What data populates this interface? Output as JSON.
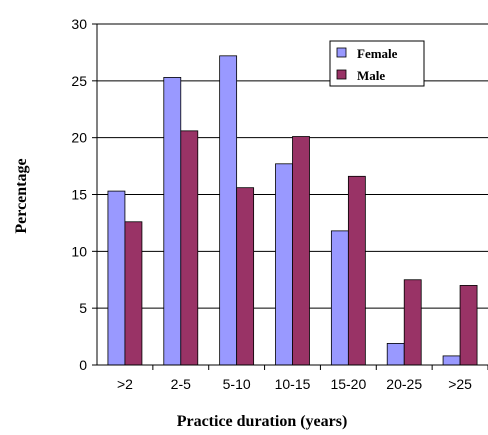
{
  "chart_data": {
    "type": "bar",
    "title": "",
    "xlabel": "Practice duration (years)",
    "ylabel": "Percentage",
    "categories": [
      ">2",
      "2-5",
      "5-10",
      "10-15",
      "15-20",
      "20-25",
      ">25"
    ],
    "series": [
      {
        "name": "Female",
        "color": "#9999ff",
        "values": [
          15.3,
          25.3,
          27.2,
          17.7,
          11.8,
          1.9,
          0.8
        ]
      },
      {
        "name": "Male",
        "color": "#993366",
        "values": [
          12.6,
          20.6,
          15.6,
          20.1,
          16.6,
          7.5,
          7.0
        ]
      }
    ],
    "ylim": [
      0,
      30
    ],
    "yticks": [
      "0",
      "5",
      "10",
      "15",
      "20",
      "25",
      "30"
    ],
    "grid": true,
    "legend_position": "top-right"
  }
}
